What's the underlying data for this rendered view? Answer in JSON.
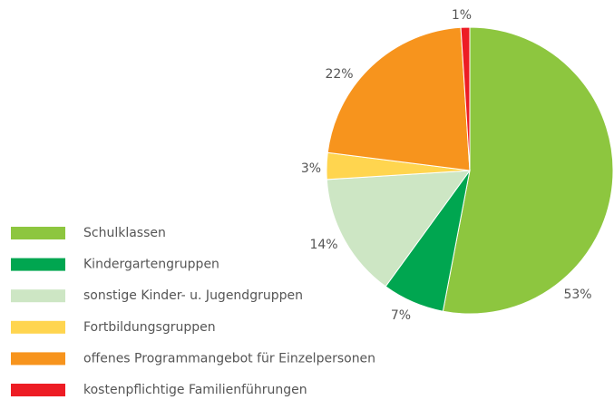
{
  "chart_data": {
    "type": "pie",
    "categories": [
      "Schulklassen",
      "Kindergartengruppen",
      "sonstige Kinder- u. Jugendgruppen",
      "Fortbildungsgruppen",
      "offenes Programmangebot für Einzelpersonen",
      "kostenpflichtige Familienführungen"
    ],
    "values": [
      53,
      7,
      14,
      3,
      22,
      1
    ],
    "value_labels": [
      "53%",
      "7%",
      "14%",
      "3%",
      "22%",
      "1%"
    ],
    "colors": [
      "#8dc63f",
      "#00a650",
      "#cde6c4",
      "#ffd54f",
      "#f7941d",
      "#ed1c24"
    ]
  }
}
